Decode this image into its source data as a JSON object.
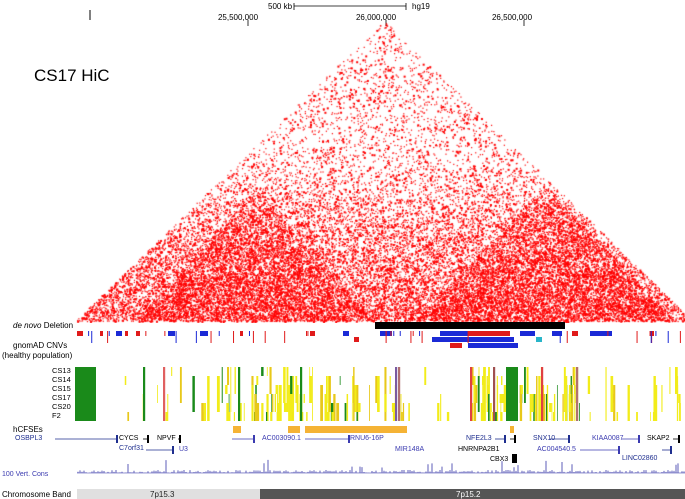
{
  "header": {
    "scale_label": "500 kb",
    "assembly": "hg19",
    "coordinates": [
      "25,500,000",
      "26,000,000",
      "26,500,000"
    ]
  },
  "hic": {
    "title": "CS17 HiC",
    "color": "#ff0000"
  },
  "tracks": {
    "deletion_label_italic": "de novo",
    "deletion_label": "Deletion",
    "gnomad_label": "gnomAD CNVs",
    "gnomad_sublabel": "(healthy population)",
    "samples": [
      "CS13",
      "CS14",
      "CS15",
      "CS17",
      "CS20",
      "F2"
    ],
    "hcfse_label": "hCFSEs",
    "cons_label": "100 Vert. Cons",
    "band_label": "Chromosome Band",
    "bands": [
      "7p15.3",
      "7p15.2"
    ]
  },
  "genes": [
    "OSBPL3",
    "CYCS",
    "NPVF",
    "C7orf31",
    "U3",
    "AC003090.1",
    "RNU6-16P",
    "MIR148A",
    "NFE2L3",
    "SNX10",
    "KIAA0087",
    "SKAP2",
    "HNRNPA2B1",
    "AC004540.5",
    "CBX3",
    "LINC02860"
  ],
  "colors": {
    "deletion": "#000000",
    "cnv_blue": "#1b2ad6",
    "cnv_red": "#e01b1b",
    "enh_green": "#1a8a1a",
    "enh_yellow": "#f2ec1a",
    "hcfse": "#f5b335",
    "gene_blue": "#1f2f8f",
    "band_light": "#e0e0e0",
    "band_dark": "#555555"
  }
}
